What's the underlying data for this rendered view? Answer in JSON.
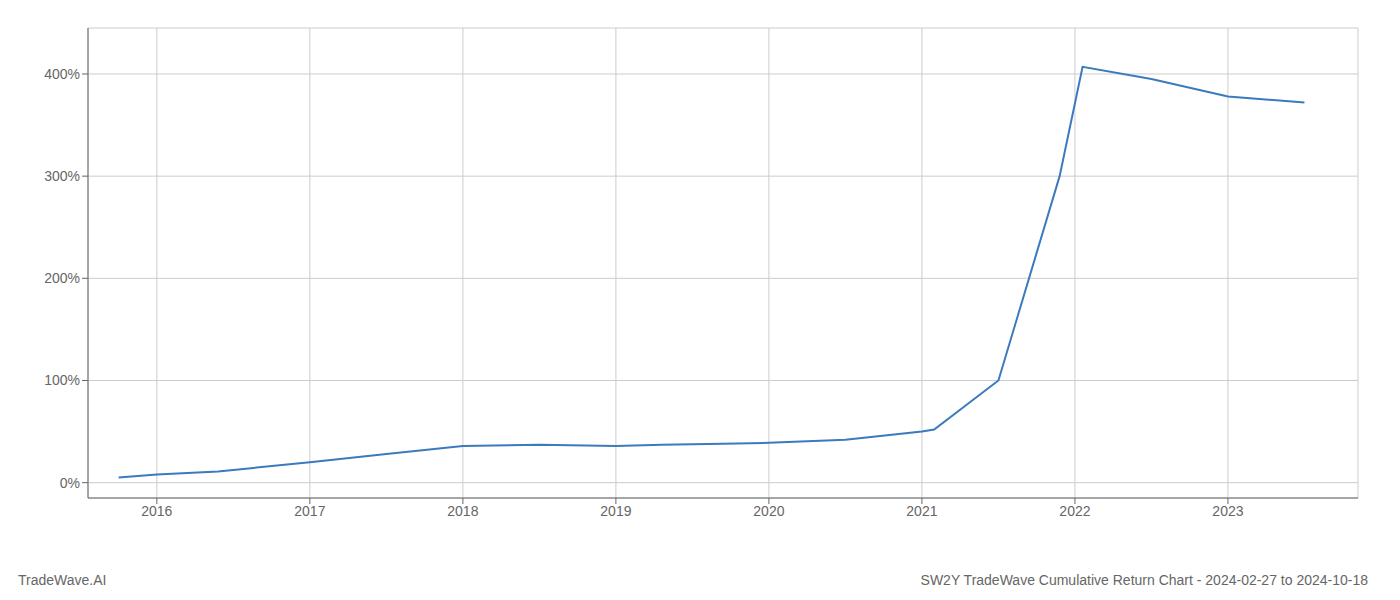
{
  "chart_data": {
    "type": "line",
    "title": "SW2Y TradeWave Cumulative Return Chart - 2024-02-27 to 2024-10-18",
    "annotations": [
      "TradeWave.AI"
    ],
    "x": [
      2015.75,
      2016.0,
      2016.4,
      2017.0,
      2017.5,
      2018.0,
      2018.5,
      2019.0,
      2019.3,
      2019.7,
      2020.0,
      2020.5,
      2021.0,
      2021.08,
      2021.5,
      2021.9,
      2022.05,
      2022.5,
      2023.0,
      2023.5
    ],
    "values": [
      5,
      8,
      11,
      20,
      28,
      36,
      37,
      36,
      37,
      38,
      39,
      42,
      50,
      52,
      100,
      300,
      407,
      395,
      378,
      372
    ],
    "color": "#3a7abf",
    "xlim": [
      2015.55,
      2023.85
    ],
    "ylim": [
      -15,
      445
    ],
    "xticks": [
      2016,
      2017,
      2018,
      2019,
      2020,
      2021,
      2022,
      2023
    ],
    "yticks": [
      {
        "value": 0,
        "label": "0%"
      },
      {
        "value": 100,
        "label": "100%"
      },
      {
        "value": 200,
        "label": "200%"
      },
      {
        "value": 300,
        "label": "300%"
      },
      {
        "value": 400,
        "label": "400%"
      }
    ],
    "grid": true
  }
}
